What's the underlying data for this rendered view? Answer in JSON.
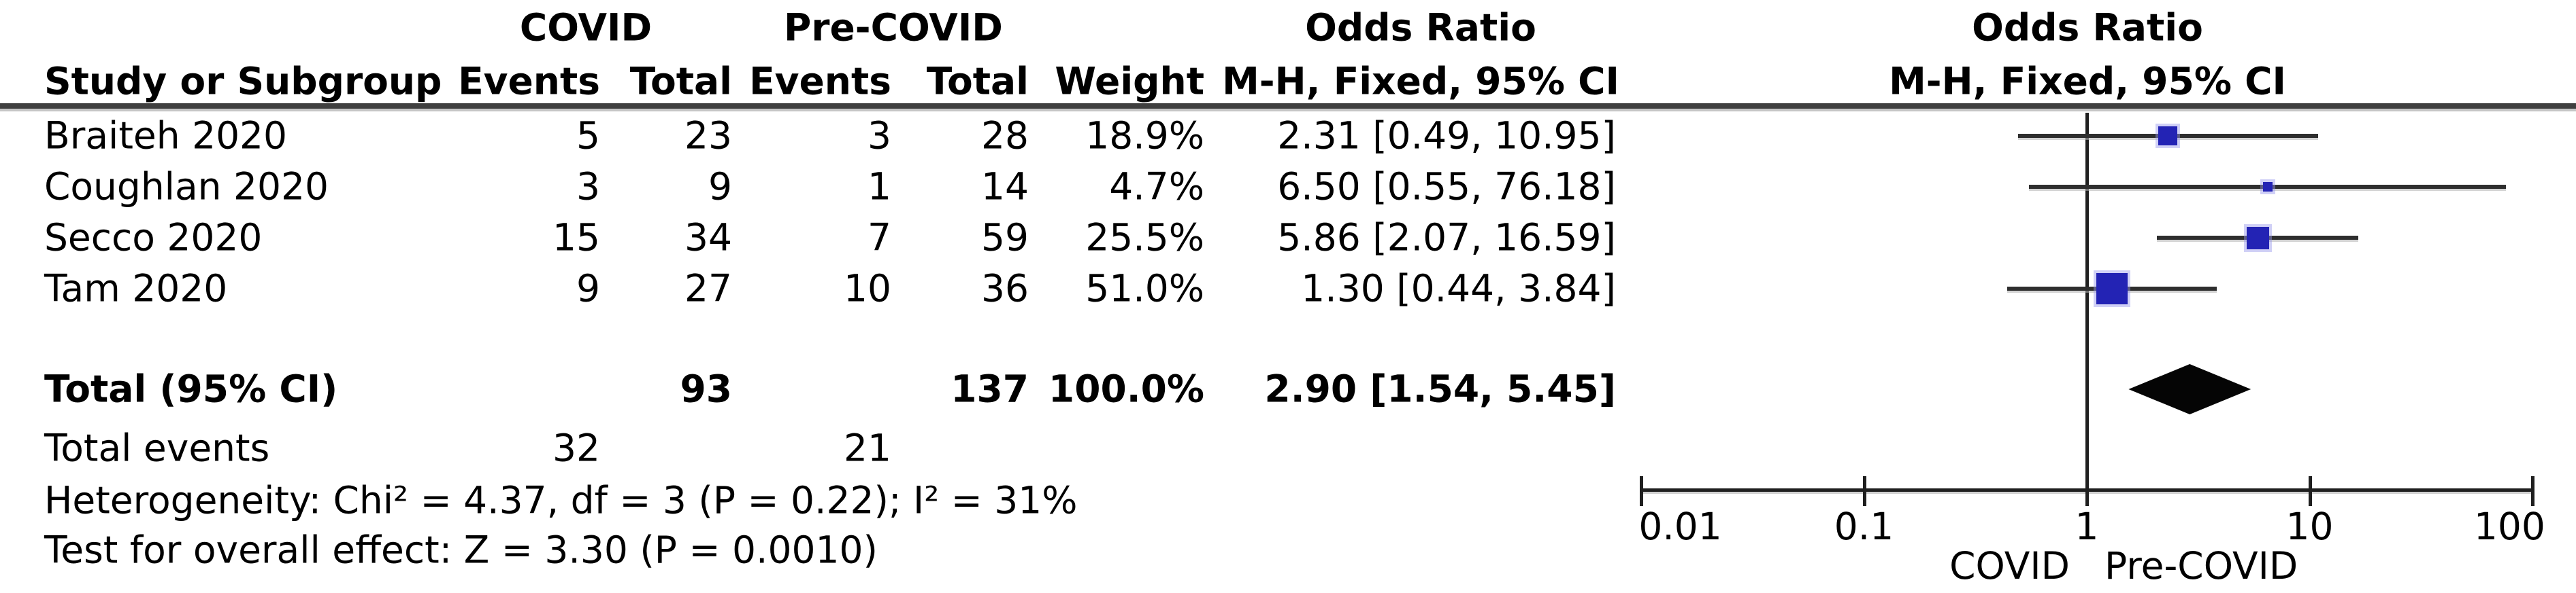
{
  "table": {
    "group_headers": {
      "covid": "COVID",
      "pre_covid": "Pre-COVID",
      "odds_ratio": "Odds Ratio",
      "odds_ratio_plot": "Odds Ratio"
    },
    "column_headers": {
      "study": "Study or Subgroup",
      "covid_events": "Events",
      "covid_total": "Total",
      "pre_events": "Events",
      "pre_total": "Total",
      "weight": "Weight",
      "mh_fixed": "M-H, Fixed, 95% CI",
      "mh_fixed_plot": "M-H, Fixed, 95% CI"
    },
    "studies": [
      {
        "name": "Braiteh 2020",
        "covid_events": "5",
        "covid_total": "23",
        "pre_events": "3",
        "pre_total": "28",
        "weight": "18.9%",
        "or_label": "2.31 [0.49, 10.95]"
      },
      {
        "name": "Coughlan 2020",
        "covid_events": "3",
        "covid_total": "9",
        "pre_events": "1",
        "pre_total": "14",
        "weight": "4.7%",
        "or_label": "6.50 [0.55, 76.18]"
      },
      {
        "name": "Secco 2020",
        "covid_events": "15",
        "covid_total": "34",
        "pre_events": "7",
        "pre_total": "59",
        "weight": "25.5%",
        "or_label": "5.86 [2.07, 16.59]"
      },
      {
        "name": "Tam 2020",
        "covid_events": "9",
        "covid_total": "27",
        "pre_events": "10",
        "pre_total": "36",
        "weight": "51.0%",
        "or_label": "1.30 [0.44, 3.84]"
      }
    ],
    "total_row": {
      "name": "Total (95% CI)",
      "covid_total": "93",
      "pre_total": "137",
      "weight": "100.0%",
      "or_label": "2.90 [1.54, 5.45]"
    },
    "total_events_row": {
      "name": "Total events",
      "covid": "32",
      "pre": "21"
    },
    "heterogeneity": "Heterogeneity: Chi² = 4.37, df = 3 (P = 0.22); I² = 31%",
    "overall_effect": "Test for overall effect: Z = 3.30 (P = 0.0010)"
  },
  "chart_data": {
    "type": "scatter",
    "subtype": "forest-plot",
    "title": "Odds Ratio",
    "subtitle": "M-H, Fixed, 95% CI",
    "x_scale": "log10",
    "x_range": [
      0.01,
      100
    ],
    "x_ticks": [
      {
        "value": 0.01,
        "label": "0.01"
      },
      {
        "value": 0.1,
        "label": "0.1"
      },
      {
        "value": 1,
        "label": "1"
      },
      {
        "value": 10,
        "label": "10"
      },
      {
        "value": 100,
        "label": "100"
      }
    ],
    "reference_line": 1,
    "axis_left_label": "COVID",
    "axis_right_label": "Pre-COVID",
    "grid": false,
    "legend": false,
    "points": [
      {
        "study": "Braiteh 2020",
        "or": 2.31,
        "ci_low": 0.49,
        "ci_high": 10.95,
        "weight_pct": 18.9
      },
      {
        "study": "Coughlan 2020",
        "or": 6.5,
        "ci_low": 0.55,
        "ci_high": 76.18,
        "weight_pct": 4.7
      },
      {
        "study": "Secco 2020",
        "or": 5.86,
        "ci_low": 2.07,
        "ci_high": 16.59,
        "weight_pct": 25.5
      },
      {
        "study": "Tam 2020",
        "or": 1.3,
        "ci_low": 0.44,
        "ci_high": 3.84,
        "weight_pct": 51.0
      }
    ],
    "summary": {
      "label": "Total (95% CI)",
      "or": 2.9,
      "ci_low": 1.54,
      "ci_high": 5.45,
      "shape": "diamond"
    }
  },
  "colors": {
    "square_blue": "#2323b4",
    "diamond_black": "#050505",
    "line_dark": "#2e2e2e",
    "text": "#000000"
  }
}
